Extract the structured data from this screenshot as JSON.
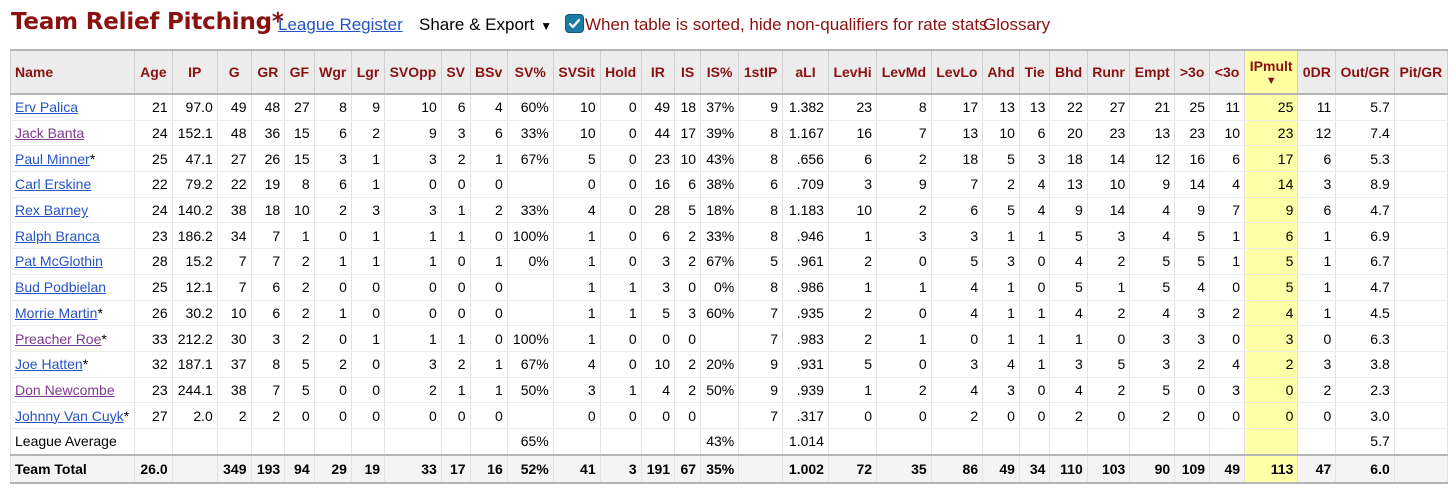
{
  "header": {
    "title": "Team Relief Pitching*",
    "league_register": "League Register",
    "share_export": "Share & Export",
    "share_caret": "▼",
    "hide_nonqualifiers": "When table is sorted, hide non-qualifiers for rate stats",
    "hide_nonqualifiers_checked": true,
    "glossary": "Glossary"
  },
  "table": {
    "columns": [
      "Name",
      "Age",
      "IP",
      "G",
      "GR",
      "GF",
      "Wgr",
      "Lgr",
      "SVOpp",
      "SV",
      "BSv",
      "SV%",
      "SVSit",
      "Hold",
      "IR",
      "IS",
      "IS%",
      "1stIP",
      "aLI",
      "LevHi",
      "LevMd",
      "LevLo",
      "Ahd",
      "Tie",
      "Bhd",
      "Runr",
      "Empt",
      ">3o",
      "<3o",
      "IPmult",
      "0DR",
      "Out/GR",
      "Pit/GR"
    ],
    "sorted_column": "IPmult",
    "sort_arrow": "▼",
    "rows": [
      {
        "name": "Erv Palica",
        "visited": false,
        "suffix": "",
        "cells": [
          "21",
          "97.0",
          "49",
          "48",
          "27",
          "8",
          "9",
          "10",
          "6",
          "4",
          "60%",
          "10",
          "0",
          "49",
          "18",
          "37%",
          "9",
          "1.382",
          "23",
          "8",
          "17",
          "13",
          "13",
          "22",
          "27",
          "21",
          "25",
          "11",
          "25",
          "11",
          "5.7",
          ""
        ]
      },
      {
        "name": "Jack Banta",
        "visited": true,
        "suffix": "",
        "cells": [
          "24",
          "152.1",
          "48",
          "36",
          "15",
          "6",
          "2",
          "9",
          "3",
          "6",
          "33%",
          "10",
          "0",
          "44",
          "17",
          "39%",
          "8",
          "1.167",
          "16",
          "7",
          "13",
          "10",
          "6",
          "20",
          "23",
          "13",
          "23",
          "10",
          "23",
          "12",
          "7.4",
          ""
        ]
      },
      {
        "name": "Paul Minner",
        "visited": false,
        "suffix": "*",
        "cells": [
          "25",
          "47.1",
          "27",
          "26",
          "15",
          "3",
          "1",
          "3",
          "2",
          "1",
          "67%",
          "5",
          "0",
          "23",
          "10",
          "43%",
          "8",
          ".656",
          "6",
          "2",
          "18",
          "5",
          "3",
          "18",
          "14",
          "12",
          "16",
          "6",
          "17",
          "6",
          "5.3",
          ""
        ]
      },
      {
        "name": "Carl Erskine",
        "visited": false,
        "suffix": "",
        "cells": [
          "22",
          "79.2",
          "22",
          "19",
          "8",
          "6",
          "1",
          "0",
          "0",
          "0",
          "",
          "0",
          "0",
          "16",
          "6",
          "38%",
          "6",
          ".709",
          "3",
          "9",
          "7",
          "2",
          "4",
          "13",
          "10",
          "9",
          "14",
          "4",
          "14",
          "3",
          "8.9",
          ""
        ]
      },
      {
        "name": "Rex Barney",
        "visited": false,
        "suffix": "",
        "cells": [
          "24",
          "140.2",
          "38",
          "18",
          "10",
          "2",
          "3",
          "3",
          "1",
          "2",
          "33%",
          "4",
          "0",
          "28",
          "5",
          "18%",
          "8",
          "1.183",
          "10",
          "2",
          "6",
          "5",
          "4",
          "9",
          "14",
          "4",
          "9",
          "7",
          "9",
          "6",
          "4.7",
          ""
        ]
      },
      {
        "name": "Ralph Branca",
        "visited": false,
        "suffix": "",
        "cells": [
          "23",
          "186.2",
          "34",
          "7",
          "1",
          "0",
          "1",
          "1",
          "1",
          "0",
          "100%",
          "1",
          "0",
          "6",
          "2",
          "33%",
          "8",
          ".946",
          "1",
          "3",
          "3",
          "1",
          "1",
          "5",
          "3",
          "4",
          "5",
          "1",
          "6",
          "1",
          "6.9",
          ""
        ]
      },
      {
        "name": "Pat McGlothin",
        "visited": false,
        "suffix": "",
        "cells": [
          "28",
          "15.2",
          "7",
          "7",
          "2",
          "1",
          "1",
          "1",
          "0",
          "1",
          "0%",
          "1",
          "0",
          "3",
          "2",
          "67%",
          "5",
          ".961",
          "2",
          "0",
          "5",
          "3",
          "0",
          "4",
          "2",
          "5",
          "5",
          "1",
          "5",
          "1",
          "6.7",
          ""
        ]
      },
      {
        "name": "Bud Podbielan",
        "visited": false,
        "suffix": "",
        "cells": [
          "25",
          "12.1",
          "7",
          "6",
          "2",
          "0",
          "0",
          "0",
          "0",
          "0",
          "",
          "1",
          "1",
          "3",
          "0",
          "0%",
          "8",
          ".986",
          "1",
          "1",
          "4",
          "1",
          "0",
          "5",
          "1",
          "5",
          "4",
          "0",
          "5",
          "1",
          "4.7",
          ""
        ]
      },
      {
        "name": "Morrie Martin",
        "visited": false,
        "suffix": "*",
        "cells": [
          "26",
          "30.2",
          "10",
          "6",
          "2",
          "1",
          "0",
          "0",
          "0",
          "0",
          "",
          "1",
          "1",
          "5",
          "3",
          "60%",
          "7",
          ".935",
          "2",
          "0",
          "4",
          "1",
          "1",
          "4",
          "2",
          "4",
          "3",
          "2",
          "4",
          "1",
          "4.5",
          ""
        ]
      },
      {
        "name": "Preacher Roe",
        "visited": true,
        "suffix": "*",
        "cells": [
          "33",
          "212.2",
          "30",
          "3",
          "2",
          "0",
          "1",
          "1",
          "1",
          "0",
          "100%",
          "1",
          "0",
          "0",
          "0",
          "",
          "7",
          ".983",
          "2",
          "1",
          "0",
          "1",
          "1",
          "1",
          "0",
          "3",
          "3",
          "0",
          "3",
          "0",
          "6.3",
          ""
        ]
      },
      {
        "name": "Joe Hatten",
        "visited": false,
        "suffix": "*",
        "cells": [
          "32",
          "187.1",
          "37",
          "8",
          "5",
          "2",
          "0",
          "3",
          "2",
          "1",
          "67%",
          "4",
          "0",
          "10",
          "2",
          "20%",
          "9",
          ".931",
          "5",
          "0",
          "3",
          "4",
          "1",
          "3",
          "5",
          "3",
          "2",
          "4",
          "2",
          "3",
          "3.8",
          ""
        ]
      },
      {
        "name": "Don Newcombe",
        "visited": true,
        "suffix": "",
        "cells": [
          "23",
          "244.1",
          "38",
          "7",
          "5",
          "0",
          "0",
          "2",
          "1",
          "1",
          "50%",
          "3",
          "1",
          "4",
          "2",
          "50%",
          "9",
          ".939",
          "1",
          "2",
          "4",
          "3",
          "0",
          "4",
          "2",
          "5",
          "0",
          "3",
          "0",
          "2",
          "2.3",
          ""
        ]
      },
      {
        "name": "Johnny Van Cuyk",
        "visited": false,
        "suffix": "*",
        "cells": [
          "27",
          "2.0",
          "2",
          "2",
          "0",
          "0",
          "0",
          "0",
          "0",
          "0",
          "",
          "0",
          "0",
          "0",
          "0",
          "",
          "7",
          ".317",
          "0",
          "0",
          "2",
          "0",
          "0",
          "2",
          "0",
          "2",
          "0",
          "0",
          "0",
          "0",
          "3.0",
          ""
        ]
      }
    ],
    "league_average": {
      "name": "League Average",
      "cells": [
        "",
        "",
        "",
        "",
        "",
        "",
        "",
        "",
        "",
        "",
        "65%",
        "",
        "",
        "",
        "",
        "43%",
        "",
        "1.014",
        "",
        "",
        "",
        "",
        "",
        "",
        "",
        "",
        "",
        "",
        "",
        "",
        "5.7",
        ""
      ]
    },
    "team_total": {
      "name": "Team Total",
      "cells": [
        "26.0",
        "",
        "349",
        "193",
        "94",
        "29",
        "19",
        "33",
        "17",
        "16",
        "52%",
        "41",
        "3",
        "191",
        "67",
        "35%",
        "",
        "1.002",
        "72",
        "35",
        "86",
        "49",
        "34",
        "110",
        "103",
        "90",
        "109",
        "49",
        "113",
        "47",
        "6.0",
        ""
      ]
    }
  },
  "colors": {
    "accent": "#8b1111",
    "link": "#2654c6",
    "visited_link": "#7c3a8c",
    "sorted_bg": "#ffffa0"
  }
}
